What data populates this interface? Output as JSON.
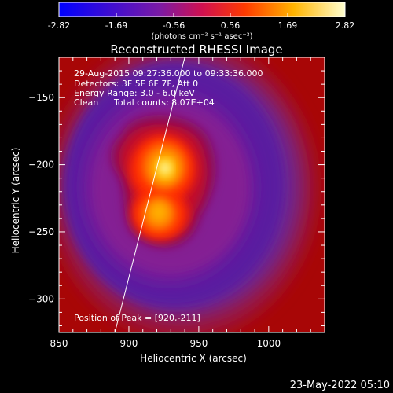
{
  "colorbar": {
    "tick_labels": [
      "-2.82",
      "-1.69",
      "-0.56",
      "0.56",
      "1.69",
      "2.82"
    ],
    "units": "(photons cm⁻² s⁻¹ asec⁻²)",
    "range": [
      -2.82,
      2.82
    ]
  },
  "chart_data": {
    "type": "heatmap",
    "title": "Reconstructed RHESSI Image",
    "xlabel": "Heliocentric X (arcsec)",
    "ylabel": "Heliocentric Y (arcsec)",
    "xlim": [
      850,
      1040
    ],
    "ylim": [
      -325,
      -120
    ],
    "xticks": [
      850,
      900,
      950,
      1000
    ],
    "yticks": [
      -150,
      -200,
      -250,
      -300
    ],
    "annotations": [
      "29-Aug-2015 09:27:36.000 to 09:33:36.000",
      "Detectors: 3F 5F 6F 7F, Att 0",
      "Energy Range: 3.0 - 6.0 keV",
      "Clean",
      "Total counts: 8.07E+04"
    ],
    "peak_label": "Position of Peak = [920,-211]",
    "peak": [
      920,
      -211
    ],
    "sources": [
      {
        "x": 920,
        "y": -211,
        "intensity": 2.82
      },
      {
        "x": 918,
        "y": -243,
        "intensity": 2.3
      }
    ],
    "limb_line": [
      [
        890,
        -325
      ],
      [
        940,
        -120
      ]
    ]
  },
  "footer": {
    "date": "23-May-2022 05:10"
  }
}
